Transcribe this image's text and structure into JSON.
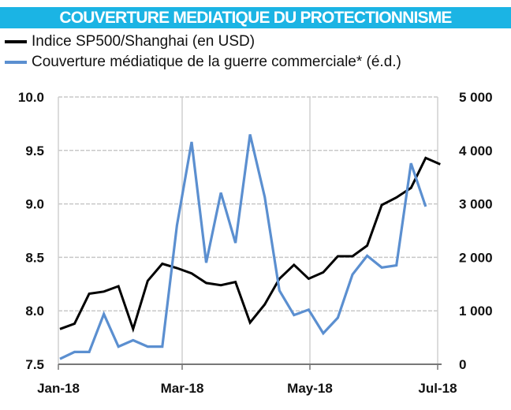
{
  "chart_data": {
    "type": "line",
    "title": "COUVERTURE MEDIATIQUE DU PROTECTIONNISME",
    "xlabel": "",
    "ylabel": "",
    "grid": true,
    "legend_position": "top-left",
    "x_tick_labels": [
      "Jan-18",
      "Mar-18",
      "May-18",
      "Jul-18"
    ],
    "y_left": {
      "lim": [
        7.5,
        10.0
      ],
      "ticks": [
        "7.5",
        "8.0",
        "8.5",
        "9.0",
        "9.5",
        "10.0"
      ]
    },
    "y_right": {
      "lim": [
        0,
        5000
      ],
      "ticks": [
        "0",
        "1 000",
        "2 000",
        "3 000",
        "4 000",
        "5 000"
      ]
    },
    "series": [
      {
        "name": "Indice SP500/Shanghai (en USD)",
        "axis": "left",
        "color": "#000000",
        "values": [
          7.83,
          7.88,
          8.16,
          8.18,
          8.23,
          7.83,
          8.28,
          8.44,
          8.4,
          8.35,
          8.26,
          8.24,
          8.27,
          7.89,
          8.06,
          8.3,
          8.43,
          8.3,
          8.36,
          8.51,
          8.51,
          8.61,
          8.99,
          9.06,
          9.15,
          9.43,
          9.37
        ]
      },
      {
        "name": "Couverture médiatique de la guerre commerciale* (é.d.)",
        "axis": "right",
        "color": "#5b8fd0",
        "values": [
          100,
          230,
          230,
          940,
          330,
          450,
          330,
          330,
          2600,
          4160,
          1900,
          3210,
          2270,
          4300,
          3130,
          1380,
          920,
          1020,
          580,
          870,
          1680,
          2030,
          1810,
          1850,
          3760,
          2950
        ]
      }
    ]
  },
  "accent_color": "#1bb4e4"
}
